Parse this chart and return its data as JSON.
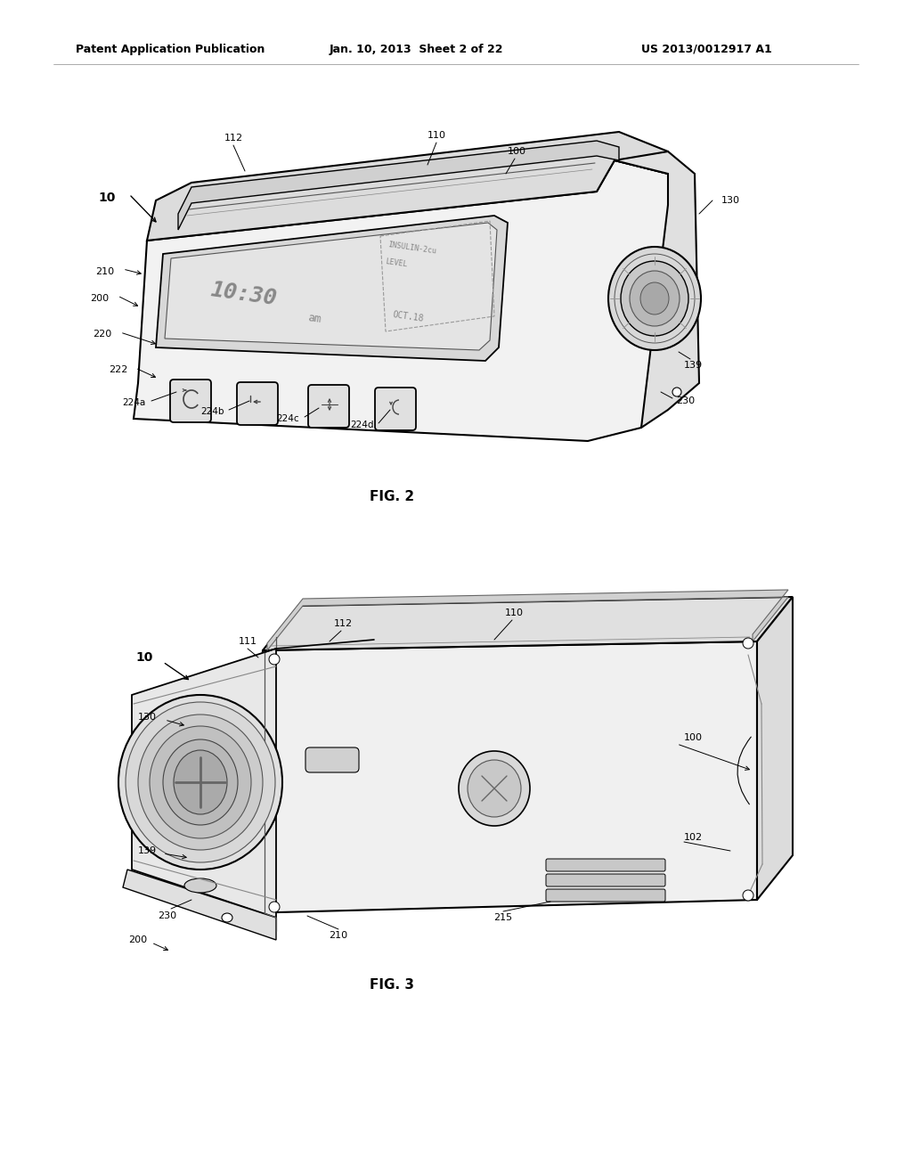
{
  "background_color": "#ffffff",
  "header_text": "Patent Application Publication",
  "header_date": "Jan. 10, 2013  Sheet 2 of 22",
  "header_patent": "US 2013/0012917 A1",
  "fig2_label": "FIG. 2",
  "fig3_label": "FIG. 3",
  "line_color": "#000000",
  "light_gray": "#e8e8e8",
  "mid_gray": "#cccccc",
  "dark_gray": "#999999"
}
